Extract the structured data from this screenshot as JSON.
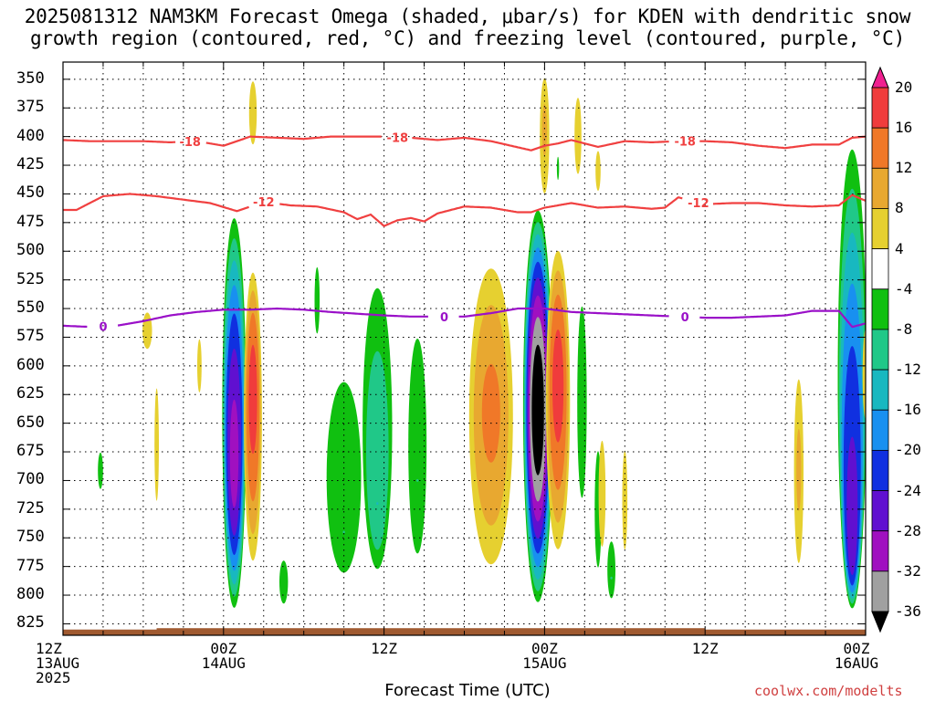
{
  "title_line1": "2025081312 NAM3KM Forecast Omega (shaded, μbar/s) for KDEN with dendritic snow",
  "title_line2": "growth region (contoured, red, °C) and freezing level (contoured, purple, °C)",
  "xlabel": "Forecast Time (UTC)",
  "credit": "coolwx.com/modelts",
  "chart_data": {
    "type": "heatmap",
    "title": "2025081312 NAM3KM Forecast Omega (shaded, μbar/s) for KDEN with dendritic snow growth region (contoured, red, °C) and freezing level (contoured, purple, °C)",
    "xlabel": "Forecast Time (UTC)",
    "ylabel": "",
    "xlim": [
      0,
      60
    ],
    "ylim_pressure_hpa": [
      335,
      835
    ],
    "y_axis": "pressure, inverted",
    "grid": true,
    "x_ticks": [
      {
        "hour": 0,
        "line1": "12Z",
        "line2": "13AUG",
        "line3": "2025"
      },
      {
        "hour": 12,
        "line1": "00Z",
        "line2": "14AUG",
        "line3": ""
      },
      {
        "hour": 24,
        "line1": "12Z",
        "line2": "",
        "line3": ""
      },
      {
        "hour": 36,
        "line1": "00Z",
        "line2": "15AUG",
        "line3": ""
      },
      {
        "hour": 48,
        "line1": "12Z",
        "line2": "",
        "line3": ""
      },
      {
        "hour": 60,
        "line1": "00Z",
        "line2": "16AUG",
        "line3": ""
      }
    ],
    "y_ticks": [
      350,
      375,
      400,
      425,
      450,
      475,
      500,
      525,
      550,
      575,
      600,
      625,
      650,
      675,
      700,
      725,
      750,
      775,
      800,
      825
    ],
    "colorbar": {
      "labels": [
        "20",
        "16",
        "12",
        "8",
        "4",
        "-4",
        "-8",
        "-12",
        "-16",
        "-20",
        "-24",
        "-28",
        "-32",
        "-36"
      ],
      "levels": [
        20,
        16,
        12,
        8,
        4,
        -4,
        -8,
        -12,
        -16,
        -20,
        -24,
        -28,
        -32,
        -36
      ],
      "colors": [
        "#f02090",
        "#f03c3c",
        "#f07828",
        "#e8a830",
        "#e6d030",
        "#ffffff",
        "#10c010",
        "#20c888",
        "#18b8c0",
        "#1890f0",
        "#1030e0",
        "#6010d0",
        "#a010c0",
        "#a0a0a0",
        "#000000"
      ]
    },
    "contours": [
      {
        "label": "-18",
        "color": "#f04040",
        "points": [
          [
            0,
            403
          ],
          [
            2,
            404
          ],
          [
            4,
            404
          ],
          [
            6,
            404
          ],
          [
            8,
            405
          ],
          [
            10,
            404
          ],
          [
            12,
            408
          ],
          [
            13,
            404
          ],
          [
            14,
            400
          ],
          [
            16,
            401
          ],
          [
            18,
            402
          ],
          [
            20,
            400
          ],
          [
            24,
            400
          ],
          [
            26,
            401
          ],
          [
            28,
            403
          ],
          [
            30,
            401
          ],
          [
            32,
            404
          ],
          [
            35,
            412
          ],
          [
            36,
            408
          ],
          [
            37,
            406
          ],
          [
            38,
            403
          ],
          [
            40,
            409
          ],
          [
            42,
            404
          ],
          [
            44,
            405
          ],
          [
            46,
            404
          ],
          [
            48,
            404
          ],
          [
            50,
            405
          ],
          [
            52,
            408
          ],
          [
            54,
            410
          ],
          [
            56,
            407
          ],
          [
            58,
            407
          ],
          [
            59,
            401
          ],
          [
            60,
            400
          ]
        ],
        "label_hours": [
          9.5,
          25,
          46.5
        ]
      },
      {
        "label": "-12",
        "color": "#f04040",
        "points": [
          [
            0,
            464
          ],
          [
            1,
            464
          ],
          [
            3,
            452
          ],
          [
            5,
            450
          ],
          [
            7,
            452
          ],
          [
            9,
            455
          ],
          [
            11,
            458
          ],
          [
            13,
            465
          ],
          [
            15,
            457
          ],
          [
            17,
            460
          ],
          [
            19,
            461
          ],
          [
            21,
            466
          ],
          [
            22,
            472
          ],
          [
            23,
            468
          ],
          [
            24,
            478
          ],
          [
            25,
            473
          ],
          [
            26,
            471
          ],
          [
            27,
            474
          ],
          [
            28,
            467
          ],
          [
            30,
            461
          ],
          [
            32,
            462
          ],
          [
            34,
            466
          ],
          [
            35,
            466
          ],
          [
            36,
            462
          ],
          [
            38,
            458
          ],
          [
            40,
            462
          ],
          [
            42,
            461
          ],
          [
            44,
            463
          ],
          [
            45,
            462
          ],
          [
            46,
            453
          ],
          [
            48,
            459
          ],
          [
            50,
            458
          ],
          [
            52,
            458
          ],
          [
            54,
            460
          ],
          [
            56,
            461
          ],
          [
            58,
            460
          ],
          [
            59,
            451
          ],
          [
            60,
            456
          ]
        ],
        "label_hours": [
          15,
          47.5
        ]
      },
      {
        "label": "0",
        "color": "#9a10c8",
        "points": [
          [
            0,
            565
          ],
          [
            2,
            566
          ],
          [
            4,
            565
          ],
          [
            6,
            561
          ],
          [
            8,
            556
          ],
          [
            10,
            553
          ],
          [
            12,
            551
          ],
          [
            14,
            551
          ],
          [
            16,
            550
          ],
          [
            18,
            551
          ],
          [
            20,
            553
          ],
          [
            24,
            556
          ],
          [
            26,
            557
          ],
          [
            28,
            557
          ],
          [
            30,
            557
          ],
          [
            32,
            554
          ],
          [
            34,
            550
          ],
          [
            36,
            550
          ],
          [
            38,
            553
          ],
          [
            40,
            554
          ],
          [
            42,
            555
          ],
          [
            44,
            556
          ],
          [
            46,
            557
          ],
          [
            48,
            558
          ],
          [
            50,
            558
          ],
          [
            52,
            557
          ],
          [
            54,
            556
          ],
          [
            56,
            552
          ],
          [
            58,
            552
          ],
          [
            59,
            566
          ],
          [
            60,
            563
          ]
        ],
        "label_hours": [
          3,
          28.5,
          46.5
        ]
      }
    ],
    "regions": [
      {
        "center_hour": 12.8,
        "base_width_hours": 0.95,
        "top_hpa": 455,
        "bottom_hpa": 820,
        "core_hpa": 690,
        "peak": -30,
        "sign": "negative"
      },
      {
        "center_hour": 14.2,
        "base_width_hours": 0.75,
        "top_hpa": 505,
        "bottom_hpa": 790,
        "core_hpa": 620,
        "peak": 18,
        "sign": "positive"
      },
      {
        "center_hour": 35.5,
        "base_width_hours": 1.15,
        "top_hpa": 455,
        "bottom_hpa": 815,
        "core_hpa": 640,
        "peak": -40,
        "sign": "negative"
      },
      {
        "center_hour": 37.0,
        "base_width_hours": 1.0,
        "top_hpa": 485,
        "bottom_hpa": 780,
        "core_hpa": 610,
        "peak": 18,
        "sign": "positive"
      },
      {
        "center_hour": 32.0,
        "base_width_hours": 1.9,
        "top_hpa": 490,
        "bottom_hpa": 800,
        "core_hpa": 640,
        "peak": 13,
        "sign": "positive"
      },
      {
        "center_hour": 23.5,
        "base_width_hours": 1.3,
        "top_hpa": 490,
        "bottom_hpa": 790,
        "core_hpa": 720,
        "peak": -12,
        "sign": "negative"
      },
      {
        "center_hour": 21.0,
        "base_width_hours": 1.7,
        "top_hpa": 560,
        "bottom_hpa": 795,
        "core_hpa": 745,
        "peak": -8,
        "sign": "negative"
      },
      {
        "center_hour": 26.5,
        "base_width_hours": 0.9,
        "top_hpa": 525,
        "bottom_hpa": 790,
        "core_hpa": 700,
        "peak": -8,
        "sign": "negative"
      },
      {
        "center_hour": 19.0,
        "base_width_hours": 0.3,
        "top_hpa": 495,
        "bottom_hpa": 595,
        "core_hpa": 540,
        "peak": -6,
        "sign": "negative"
      },
      {
        "center_hour": 16.5,
        "base_width_hours": 0.5,
        "top_hpa": 755,
        "bottom_hpa": 820,
        "core_hpa": 790,
        "peak": -6,
        "sign": "negative"
      },
      {
        "center_hour": 38.8,
        "base_width_hours": 0.5,
        "top_hpa": 505,
        "bottom_hpa": 760,
        "core_hpa": 630,
        "peak": -7,
        "sign": "negative"
      },
      {
        "center_hour": 40.0,
        "base_width_hours": 0.35,
        "top_hpa": 645,
        "bottom_hpa": 800,
        "core_hpa": 730,
        "peak": -7,
        "sign": "negative"
      },
      {
        "center_hour": 41.0,
        "base_width_hours": 0.4,
        "top_hpa": 740,
        "bottom_hpa": 810,
        "core_hpa": 785,
        "peak": -8,
        "sign": "negative"
      },
      {
        "center_hour": 59.0,
        "base_width_hours": 1.15,
        "top_hpa": 380,
        "bottom_hpa": 815,
        "core_hpa": 770,
        "peak": -26,
        "sign": "negative"
      },
      {
        "center_hour": 60.0,
        "base_width_hours": 0.35,
        "top_hpa": 545,
        "bottom_hpa": 680,
        "core_hpa": 600,
        "peak": 6,
        "sign": "positive"
      },
      {
        "center_hour": 14.2,
        "base_width_hours": 0.45,
        "top_hpa": 335,
        "bottom_hpa": 430,
        "core_hpa": 375,
        "peak": 6,
        "sign": "positive"
      },
      {
        "center_hour": 36.0,
        "base_width_hours": 0.45,
        "top_hpa": 335,
        "bottom_hpa": 470,
        "core_hpa": 390,
        "peak": 9,
        "sign": "positive"
      },
      {
        "center_hour": 38.5,
        "base_width_hours": 0.4,
        "top_hpa": 345,
        "bottom_hpa": 460,
        "core_hpa": 395,
        "peak": 6,
        "sign": "positive"
      },
      {
        "center_hour": 37.0,
        "base_width_hours": 0.12,
        "top_hpa": 410,
        "bottom_hpa": 445,
        "core_hpa": 428,
        "peak": -6,
        "sign": "negative"
      },
      {
        "center_hour": 40.0,
        "base_width_hours": 0.3,
        "top_hpa": 400,
        "bottom_hpa": 460,
        "core_hpa": 430,
        "peak": 6,
        "sign": "positive"
      },
      {
        "center_hour": 6.3,
        "base_width_hours": 0.55,
        "top_hpa": 545,
        "bottom_hpa": 600,
        "core_hpa": 565,
        "peak": 6,
        "sign": "positive"
      },
      {
        "center_hour": 7.0,
        "base_width_hours": 0.25,
        "top_hpa": 590,
        "bottom_hpa": 760,
        "core_hpa": 660,
        "peak": 6,
        "sign": "positive"
      },
      {
        "center_hour": 10.2,
        "base_width_hours": 0.25,
        "top_hpa": 560,
        "bottom_hpa": 640,
        "core_hpa": 600,
        "peak": 6,
        "sign": "positive"
      },
      {
        "center_hour": 2.8,
        "base_width_hours": 0.3,
        "top_hpa": 665,
        "bottom_hpa": 720,
        "core_hpa": 690,
        "peak": -6,
        "sign": "negative"
      },
      {
        "center_hour": 40.3,
        "base_width_hours": 0.4,
        "top_hpa": 640,
        "bottom_hpa": 800,
        "core_hpa": 700,
        "peak": 6,
        "sign": "positive"
      },
      {
        "center_hour": 42.0,
        "base_width_hours": 0.3,
        "top_hpa": 640,
        "bottom_hpa": 790,
        "core_hpa": 720,
        "peak": 6,
        "sign": "positive"
      },
      {
        "center_hour": 55.0,
        "base_width_hours": 0.45,
        "top_hpa": 585,
        "bottom_hpa": 800,
        "core_hpa": 690,
        "peak": 9,
        "sign": "positive"
      }
    ],
    "terrain": {
      "color": "#a05a30",
      "surface_hpa": 830
    }
  }
}
